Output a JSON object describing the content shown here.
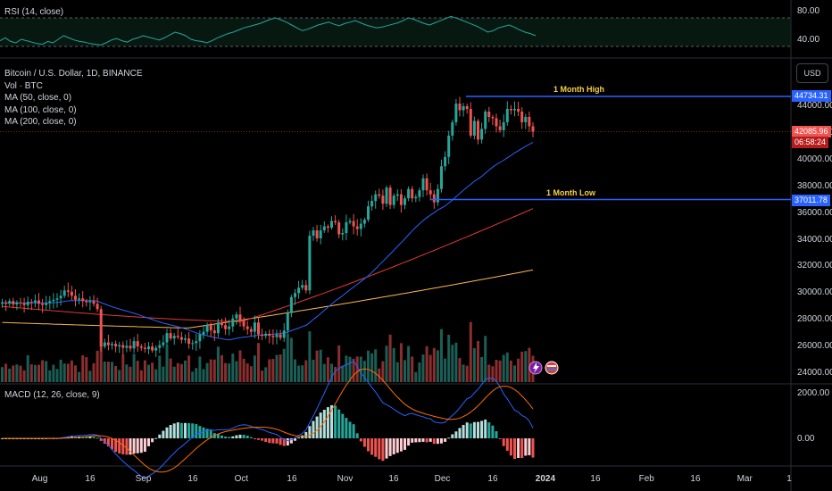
{
  "rsi": {
    "title": "RSI (14, close)",
    "levels": [
      "80.00",
      "40.00"
    ],
    "values": [
      48,
      52,
      47,
      45,
      50,
      48,
      46,
      44,
      43,
      47,
      45,
      50,
      55,
      52,
      49,
      47,
      46,
      44,
      43,
      42,
      45,
      49,
      51,
      48,
      46,
      50,
      52,
      55,
      53,
      51,
      49,
      52,
      56,
      60,
      58,
      55,
      50,
      48,
      47,
      45,
      48,
      52,
      55,
      58,
      60,
      63,
      66,
      68,
      70,
      72,
      75,
      78,
      80,
      77,
      74,
      70,
      66,
      62,
      64,
      67,
      70,
      72,
      74,
      71,
      69,
      72,
      74,
      76,
      73,
      70,
      68,
      66,
      67,
      69,
      71,
      73,
      76,
      80,
      78,
      75,
      72,
      70,
      73,
      76,
      79,
      82,
      80,
      77,
      74,
      71,
      68,
      64,
      60,
      62,
      66,
      68,
      70,
      67,
      63,
      60,
      58,
      55
    ]
  },
  "main": {
    "symbol_title": "Bitcoin / U.S. Dollar, 1D, BINANCE",
    "indicators": [
      "Vol · BTC",
      "MA (50, close, 0)",
      "MA (100, close, 0)",
      "MA (200, close, 0)"
    ],
    "currency_button": "USD",
    "last_price_tag": "42085.96",
    "countdown_tag": "06:58:24",
    "high_tag": "44734.31",
    "low_tag": "37011.78",
    "high_label": "1 Month High",
    "low_label": "1 Month Low",
    "y_ticks": [
      "44000.00",
      "42000.00",
      "40000.00",
      "38000.00",
      "36000.00",
      "34000.00",
      "32000.00",
      "30000.00",
      "28000.00",
      "26000.00",
      "24000.00"
    ],
    "x_ticks": [
      "Aug",
      "16",
      "Sep",
      "16",
      "Oct",
      "16",
      "Nov",
      "16",
      "Dec",
      "16",
      "2024",
      "16",
      "Feb",
      "16",
      "Mar",
      "1"
    ]
  },
  "macd": {
    "title": "MACD (12, 26, close, 9)",
    "levels": [
      "2000.00",
      "0.00"
    ]
  },
  "colors": {
    "up": "#26a69a",
    "down": "#ef5350",
    "ma50": "#2962ff",
    "ma100": "#e53935",
    "ma200": "#ffb74d",
    "hline": "#2962ff",
    "rsi": "#26a69a",
    "macd": "#2962ff",
    "signal": "#ff6d00"
  },
  "chart_data": {
    "type": "candlestick",
    "title": "Bitcoin / U.S. Dollar, 1D, BINANCE",
    "ylim": [
      23500,
      46000
    ],
    "x_range": [
      "2023-07-24",
      "2024-03-20"
    ],
    "closes": [
      29300,
      29200,
      29400,
      29150,
      29300,
      29250,
      29100,
      29350,
      29300,
      29450,
      29200,
      29100,
      29250,
      29400,
      29500,
      29600,
      29800,
      30200,
      30100,
      29800,
      29500,
      29600,
      29400,
      29300,
      29400,
      29200,
      28800,
      26000,
      26300,
      26100,
      26200,
      26000,
      26100,
      25900,
      26050,
      25850,
      26400,
      26000,
      25900,
      25800,
      26000,
      25700,
      25900,
      26100,
      26300,
      27000,
      26600,
      26800,
      26700,
      26500,
      26600,
      26200,
      26250,
      26400,
      26900,
      27100,
      27600,
      27200,
      27000,
      27800,
      27600,
      27300,
      27500,
      28100,
      28400,
      27900,
      27500,
      27300,
      27100,
      27800,
      26900,
      26800,
      26950,
      26800,
      26700,
      26900,
      26650,
      27200,
      28500,
      29700,
      30000,
      30400,
      30600,
      30200,
      34300,
      34700,
      34100,
      34700,
      35000,
      34900,
      35400,
      35300,
      34400,
      34500,
      35300,
      35400,
      35000,
      34800,
      35200,
      35500,
      36500,
      36900,
      37400,
      37300,
      36700,
      37900,
      36600,
      37300,
      37400,
      36600,
      37100,
      37800,
      37100,
      37200,
      37700,
      38600,
      37700,
      37400,
      36800,
      37800,
      39500,
      40200,
      41800,
      42800,
      44200,
      43700,
      44000,
      43800,
      41800,
      42900,
      41500,
      42300,
      43600,
      43200,
      43100,
      42500,
      42200,
      42800,
      43800,
      43700,
      43800,
      43600,
      42800,
      43200,
      42500,
      42100
    ]
  }
}
